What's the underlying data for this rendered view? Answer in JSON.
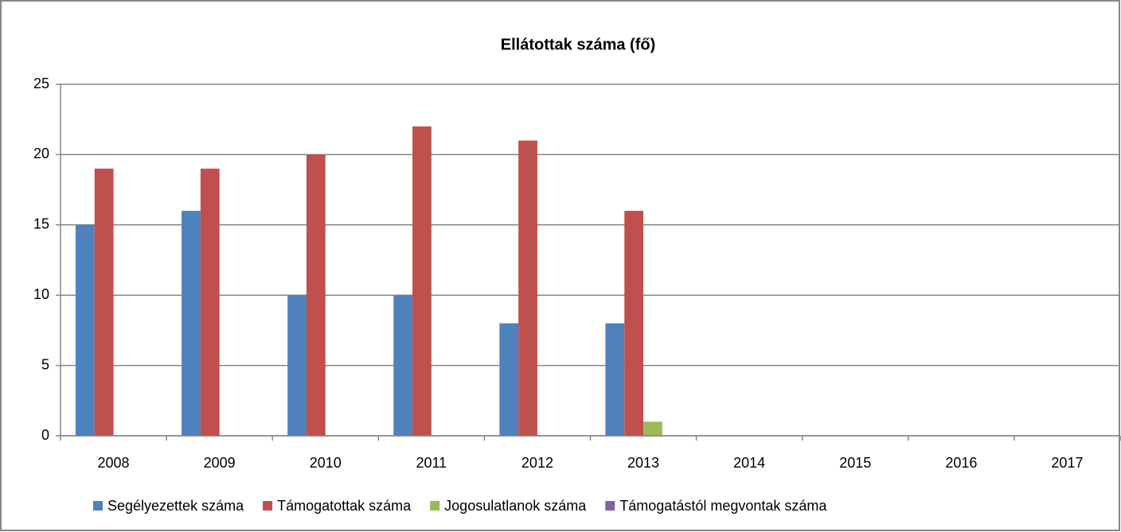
{
  "chart_data": {
    "type": "bar",
    "title": "Ellátottak száma (fő)",
    "categories": [
      "2008",
      "2009",
      "2010",
      "2011",
      "2012",
      "2013",
      "2014",
      "2015",
      "2016",
      "2017"
    ],
    "series": [
      {
        "name": "Segélyezettek száma",
        "color": "#4f81bd",
        "values": [
          15,
          16,
          10,
          10,
          8,
          8,
          null,
          null,
          null,
          null
        ]
      },
      {
        "name": "Támogatottak száma",
        "color": "#c0504d",
        "values": [
          19,
          19,
          20,
          22,
          21,
          16,
          null,
          null,
          null,
          null
        ]
      },
      {
        "name": "Jogosulatlanok száma",
        "color": "#9bbb59",
        "values": [
          0,
          0,
          0,
          0,
          0,
          1,
          null,
          null,
          null,
          null
        ]
      },
      {
        "name": "Támogatástól megvontak száma",
        "color": "#8064a2",
        "values": [
          0,
          0,
          0,
          0,
          0,
          0,
          null,
          null,
          null,
          null
        ]
      }
    ],
    "ylim": [
      0,
      25
    ],
    "yticks": [
      0,
      5,
      10,
      15,
      20,
      25
    ],
    "grid": true,
    "legend": "bottom"
  }
}
